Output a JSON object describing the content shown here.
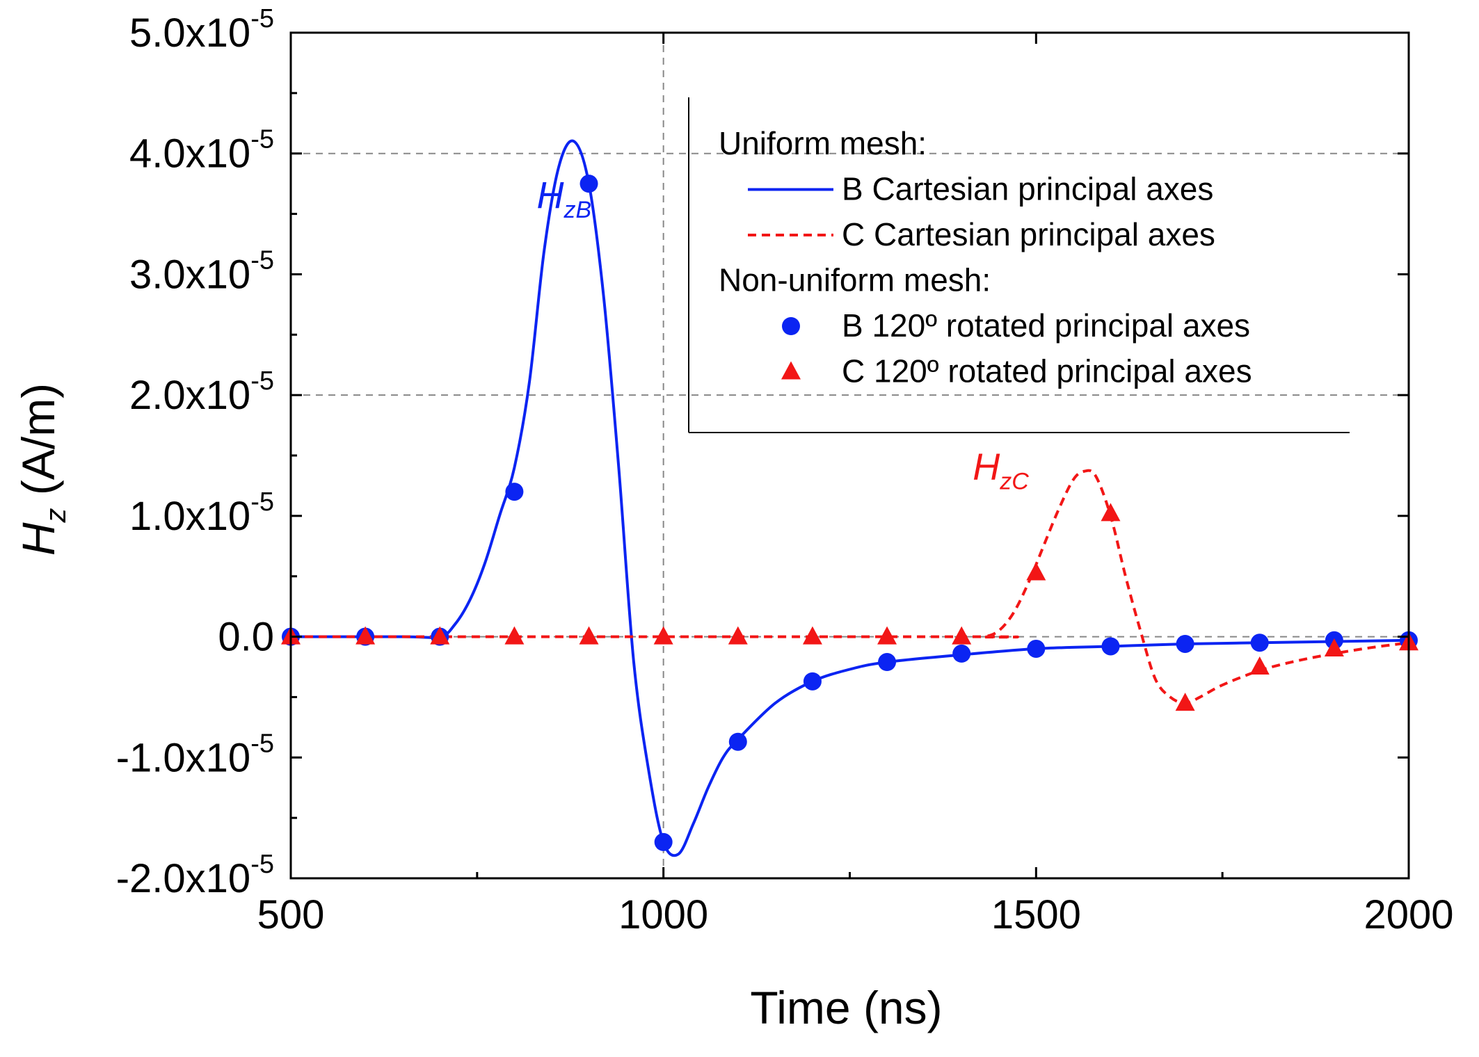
{
  "chart_data": {
    "type": "line",
    "xlabel": "Time (ns)",
    "ylabel": "H_z (A/m)",
    "ylabel_parts": {
      "main": "H",
      "sub": "z",
      "unit": " (A/m)"
    },
    "xlim": [
      500,
      2000
    ],
    "ylim": [
      -2e-05,
      5e-05
    ],
    "xticks": [
      500,
      1000,
      1500,
      2000
    ],
    "xtick_labels": [
      "500",
      "1000",
      "1500",
      "2000"
    ],
    "yticks": [
      -2e-05,
      -1e-05,
      0,
      1e-05,
      2e-05,
      3e-05,
      4e-05,
      5e-05
    ],
    "ytick_labels": [
      {
        "mant": "-2.0x10",
        "exp": "-5"
      },
      {
        "mant": "-1.0x10",
        "exp": "-5"
      },
      {
        "mant": "0.0",
        "exp": ""
      },
      {
        "mant": "1.0x10",
        "exp": "-5"
      },
      {
        "mant": "2.0x10",
        "exp": "-5"
      },
      {
        "mant": "3.0x10",
        "exp": "-5"
      },
      {
        "mant": "4.0x10",
        "exp": "-5"
      },
      {
        "mant": "5.0x10",
        "exp": "-5"
      }
    ],
    "reference_lines": {
      "vertical_x": [
        1000
      ],
      "horizontal_y": [
        4e-05,
        2e-05,
        0
      ]
    },
    "colors": {
      "blue": "#0b24f2",
      "red": "#f21616",
      "grid": "#888888"
    },
    "legend": {
      "placement": "top-right",
      "groups": [
        {
          "heading": "Uniform mesh:",
          "entries": [
            {
              "label": "B Cartesian principal axes",
              "marker": "solid-line",
              "color": "#0b24f2"
            },
            {
              "label": "C Cartesian principal axes",
              "marker": "dashed-line",
              "color": "#f21616"
            }
          ]
        },
        {
          "heading": "Non-uniform mesh:",
          "entries": [
            {
              "label": "B 120º rotated principal axes",
              "marker": "circle",
              "color": "#0b24f2"
            },
            {
              "label": "C 120º rotated principal axes",
              "marker": "triangle",
              "color": "#f21616"
            }
          ]
        }
      ]
    },
    "annotations": [
      {
        "main": "H",
        "sub": "zB",
        "color": "#0b24f2",
        "x": 830,
        "y": 3.55e-05
      },
      {
        "main": "H",
        "sub": "zC",
        "color": "#f21616",
        "x": 1415,
        "y": 1.3e-05
      }
    ],
    "series": [
      {
        "name": "B Cartesian principal axes",
        "style": "solid",
        "color": "#0b24f2",
        "x": [
          500,
          650,
          700,
          720,
          740,
          760,
          780,
          800,
          820,
          840,
          860,
          880,
          900,
          920,
          940,
          960,
          980,
          1000,
          1020,
          1040,
          1060,
          1080,
          1100,
          1150,
          1200,
          1250,
          1300,
          1400,
          1500,
          1600,
          1700,
          1800,
          1900,
          2000
        ],
        "y": [
          0,
          0,
          0.0,
          1e-06,
          3e-06,
          6e-06,
          1e-05,
          1.4e-05,
          2.1e-05,
          3.2e-05,
          3.9e-05,
          4.1e-05,
          3.75e-05,
          2.8e-05,
          1.4e-05,
          -2e-06,
          -1.1e-05,
          -1.7e-05,
          -1.8e-05,
          -1.55e-05,
          -1.25e-05,
          -1e-05,
          -8.5e-06,
          -5.5e-06,
          -3.7e-06,
          -2.7e-06,
          -2.1e-06,
          -1.5e-06,
          -1e-06,
          -8e-07,
          -6e-07,
          -5e-07,
          -4e-07,
          -3e-07
        ]
      },
      {
        "name": "C Cartesian principal axes",
        "style": "dashed",
        "color": "#f21616",
        "x": [
          500,
          1400,
          1430,
          1450,
          1470,
          1490,
          1510,
          1530,
          1550,
          1565,
          1580,
          1600,
          1620,
          1640,
          1660,
          1680,
          1700,
          1720,
          1750,
          1800,
          1850,
          1900,
          1950,
          2000
        ],
        "y": [
          0,
          0,
          0.0,
          5e-07,
          2e-06,
          4.5e-06,
          7.5e-06,
          1.05e-05,
          1.3e-05,
          1.37e-05,
          1.33e-05,
          1e-05,
          5e-06,
          5e-07,
          -3.5e-06,
          -5e-06,
          -5.5e-06,
          -5e-06,
          -4e-06,
          -2.8e-06,
          -2e-06,
          -1.4e-06,
          -9e-07,
          -5e-07
        ]
      },
      {
        "name": "B 120º rotated principal axes",
        "style": "markers",
        "marker": "circle",
        "color": "#0b24f2",
        "x": [
          500,
          600,
          700,
          800,
          900,
          1000,
          1100,
          1200,
          1300,
          1400,
          1500,
          1600,
          1700,
          1800,
          1900,
          2000
        ],
        "y": [
          0,
          0,
          0,
          1.2e-05,
          3.75e-05,
          -1.7e-05,
          -8.7e-06,
          -3.7e-06,
          -2.1e-06,
          -1.4e-06,
          -1e-06,
          -8e-07,
          -6e-07,
          -5e-07,
          -3e-07,
          -3e-07
        ]
      },
      {
        "name": "C 120º rotated principal axes",
        "style": "markers",
        "marker": "triangle",
        "color": "#f21616",
        "x": [
          500,
          600,
          700,
          800,
          900,
          1000,
          1100,
          1200,
          1300,
          1400,
          1500,
          1600,
          1700,
          1800,
          1900,
          2000
        ],
        "y": [
          0,
          0,
          0,
          0,
          0,
          0,
          0,
          0,
          0,
          0,
          5.3e-06,
          1.02e-05,
          -5.5e-06,
          -2.5e-06,
          -1e-06,
          -5e-07
        ]
      }
    ]
  }
}
